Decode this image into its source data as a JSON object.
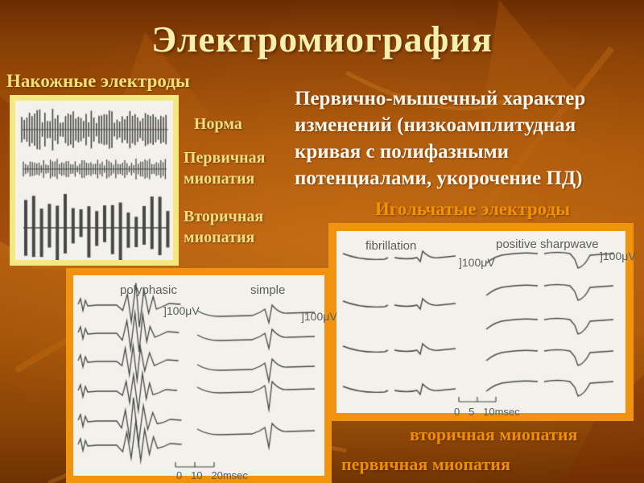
{
  "slide": {
    "title": "Электромиография",
    "skin_section": {
      "heading": "Накожные электроды",
      "labels": [
        "Норма",
        "Первичная миопатия",
        "Вторичная миопатия"
      ]
    },
    "body_text": "Первично-мышечный характер изменений (низкоамплитудная кривая с полифазными потенциалами, укорочение ПД)",
    "needle_section": {
      "heading": "Игольчатые электроды"
    },
    "needle_figure": {
      "col1_caption": "fibrillation",
      "col2_caption": "positive sharpwave",
      "amp_scale_col1": "]100μV",
      "amp_scale_col2": "]100μV",
      "time_scale": "0   5   10msec"
    },
    "poly_figure": {
      "col1_caption": "polyphasic",
      "col2_caption": "simple",
      "amp_scale_col1": "]100μV",
      "amp_scale_col2": "]100μV",
      "time_scale": "0   10   20msec"
    },
    "bottom_labels": [
      "вторичная миопатия",
      "первичная миопатия"
    ],
    "colors": {
      "title_text": "#F7F0AC",
      "yellow_heading": "#F3E074",
      "orange_heading": "#F29200",
      "body_text": "#FCF7EC",
      "yellow_frame": "#F7E77F",
      "orange_frame": "#F0930F",
      "scan_paper": "#F3F1EC",
      "trace_ink": "#474747",
      "background_mid": "#B45E10"
    }
  }
}
